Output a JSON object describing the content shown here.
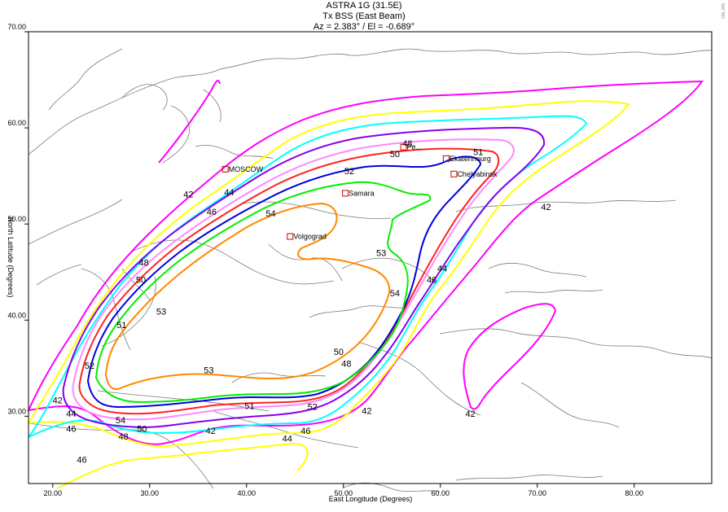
{
  "header": {
    "title": "ASTRA 1G (31.5E)",
    "subtitle": "Tx BSS (East Beam)",
    "pointing": "Az = 2.383° / El = -0.689°",
    "side_mark": "CBL 065"
  },
  "chart_data": {
    "type": "contour-map",
    "title": "ASTRA 1G (31.5E)",
    "subtitle": "Tx BSS (East Beam)",
    "annotation": "Az = 2.383° / El = -0.689°",
    "xlabel": "East Longitude (Degrees)",
    "ylabel": "North Latitude (Degrees)",
    "xlim": [
      17.5,
      88
    ],
    "ylim": [
      23,
      70
    ],
    "x_ticks": [
      "20.00",
      "30.00",
      "40.00",
      "50.00",
      "60.00",
      "70.00",
      "80.00"
    ],
    "y_ticks": [
      "30.00",
      "40.00",
      "50.00",
      "60.00",
      "70.00"
    ],
    "levels": [
      42,
      44,
      46,
      48,
      50,
      51,
      52,
      53,
      54
    ],
    "level_colors": {
      "42": "#ff00ff",
      "44": "#ffff00",
      "46": "#00ffff",
      "48": "#8800ee",
      "50": "#ff88ff",
      "51": "#ff2222",
      "52": "#0000dd",
      "53": "#00ee00",
      "54": "#ff8800"
    },
    "contour_labels": [
      {
        "level": "42",
        "lon": 20.5,
        "lat": 31.7
      },
      {
        "level": "42",
        "lon": 36.3,
        "lat": 28.5
      },
      {
        "level": "42",
        "lon": 52.4,
        "lat": 30.6
      },
      {
        "level": "42",
        "lon": 63.1,
        "lat": 30.3
      },
      {
        "level": "42",
        "lon": 70.9,
        "lat": 51.8
      },
      {
        "level": "42",
        "lon": 34.0,
        "lat": 53.1
      },
      {
        "level": "44",
        "lon": 21.9,
        "lat": 30.3
      },
      {
        "level": "44",
        "lon": 44.2,
        "lat": 27.7
      },
      {
        "level": "44",
        "lon": 38.2,
        "lat": 53.3
      },
      {
        "level": "44",
        "lon": 60.2,
        "lat": 45.4
      },
      {
        "level": "46",
        "lon": 21.9,
        "lat": 28.7
      },
      {
        "level": "46",
        "lon": 23.0,
        "lat": 25.5
      },
      {
        "level": "46",
        "lon": 46.1,
        "lat": 28.5
      },
      {
        "level": "46",
        "lon": 59.1,
        "lat": 44.2
      },
      {
        "level": "46",
        "lon": 36.4,
        "lat": 51.3
      },
      {
        "level": "48",
        "lon": 27.3,
        "lat": 27.9
      },
      {
        "level": "48",
        "lon": 50.3,
        "lat": 35.5
      },
      {
        "level": "48",
        "lon": 56.6,
        "lat": 58.4
      },
      {
        "level": "48",
        "lon": 29.4,
        "lat": 46.0
      },
      {
        "level": "50",
        "lon": 29.2,
        "lat": 28.7
      },
      {
        "level": "50",
        "lon": 49.5,
        "lat": 36.7
      },
      {
        "level": "50",
        "lon": 55.3,
        "lat": 57.3
      },
      {
        "level": "50",
        "lon": 29.1,
        "lat": 44.2
      },
      {
        "level": "51",
        "lon": 40.3,
        "lat": 31.1
      },
      {
        "level": "51",
        "lon": 27.1,
        "lat": 39.5
      },
      {
        "level": "51",
        "lon": 63.9,
        "lat": 57.5
      },
      {
        "level": "52",
        "lon": 23.8,
        "lat": 35.3
      },
      {
        "level": "52",
        "lon": 46.8,
        "lat": 31.0
      },
      {
        "level": "52",
        "lon": 50.6,
        "lat": 55.5
      },
      {
        "level": "53",
        "lon": 31.2,
        "lat": 40.9
      },
      {
        "level": "53",
        "lon": 36.1,
        "lat": 34.8
      },
      {
        "level": "53",
        "lon": 53.9,
        "lat": 47.0
      },
      {
        "level": "54",
        "lon": 27.0,
        "lat": 29.6
      },
      {
        "level": "54",
        "lon": 42.5,
        "lat": 51.1
      },
      {
        "level": "54",
        "lon": 55.3,
        "lat": 42.8
      }
    ],
    "cities": [
      {
        "name": "MOSCOW",
        "lon": 37.8,
        "lat": 55.7
      },
      {
        "name": "Samara",
        "lon": 50.2,
        "lat": 53.2
      },
      {
        "name": "Volgograd",
        "lon": 44.5,
        "lat": 48.7
      },
      {
        "name": "Pe...",
        "lon": 56.2,
        "lat": 58.0
      },
      {
        "name": "Ekaterinourg",
        "lon": 60.6,
        "lat": 56.8
      },
      {
        "name": "Chelyabinsk",
        "lon": 61.4,
        "lat": 55.2
      }
    ]
  }
}
